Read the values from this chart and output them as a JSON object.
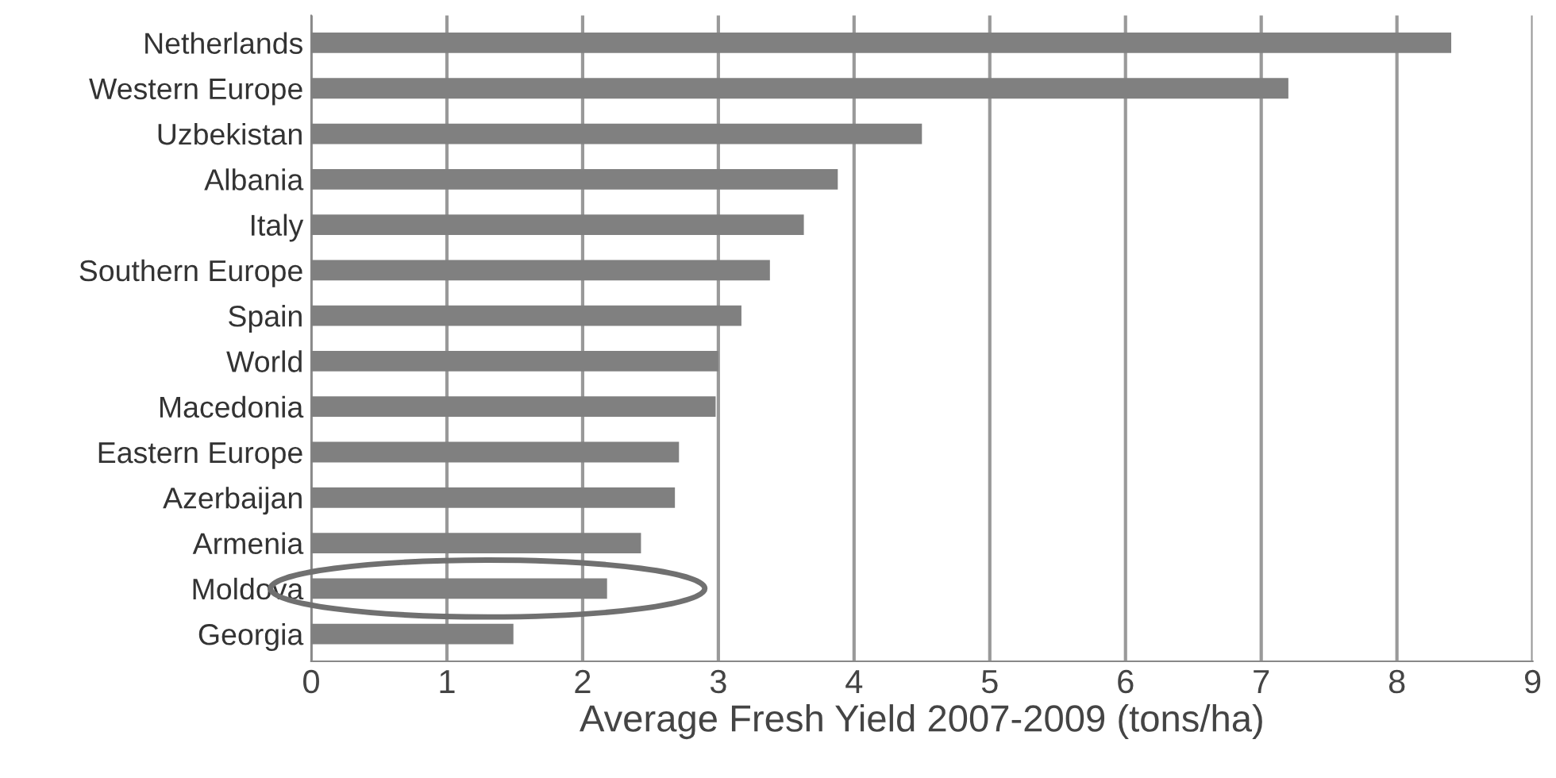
{
  "chart_data": {
    "type": "bar",
    "orientation": "horizontal",
    "xlabel": "Average Fresh Yield 2007-2009 (tons/ha)",
    "categories": [
      "Netherlands",
      "Western Europe",
      "Uzbekistan",
      "Albania",
      "Italy",
      "Southern Europe",
      "Spain",
      "World",
      "Macedonia",
      "Eastern Europe",
      "Azerbaijan",
      "Armenia",
      "Moldova",
      "Georgia"
    ],
    "values": [
      8.4,
      7.2,
      4.5,
      3.88,
      3.63,
      3.38,
      3.17,
      3.0,
      2.98,
      2.71,
      2.68,
      2.43,
      2.18,
      1.49
    ],
    "color": "#808080",
    "xlim": [
      0,
      9
    ],
    "xticks": [
      0,
      1,
      2,
      3,
      4,
      5,
      6,
      7,
      8,
      9
    ],
    "grid": "x"
  }
}
